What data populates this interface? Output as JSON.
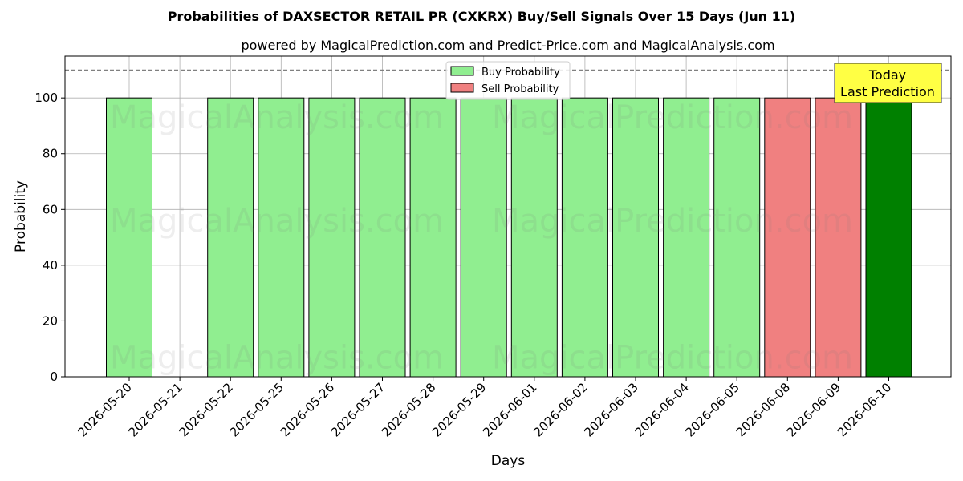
{
  "chart_data": {
    "type": "bar",
    "title": "Probabilities of DAXSECTOR RETAIL PR (CXKRX) Buy/Sell Signals Over 15 Days (Jun 11)",
    "subtitle": "powered by MagicalPrediction.com and Predict-Price.com and MagicalAnalysis.com",
    "xlabel": "Days",
    "ylabel": "Probability",
    "ylim": [
      0,
      115
    ],
    "yticks": [
      0,
      20,
      40,
      60,
      80,
      100
    ],
    "reference_line": 110,
    "grid": true,
    "legend_position": "top-center",
    "categories": [
      "2026-05-20",
      "2026-05-21",
      "2026-05-22",
      "2026-05-25",
      "2026-05-26",
      "2026-05-27",
      "2026-05-28",
      "2026-05-29",
      "2026-06-01",
      "2026-06-02",
      "2026-06-03",
      "2026-06-04",
      "2026-06-05",
      "2026-06-08",
      "2026-06-09",
      "2026-06-10"
    ],
    "series": [
      {
        "name": "Buy Probability",
        "color": "#90EE90",
        "values": [
          100,
          null,
          100,
          100,
          100,
          100,
          100,
          100,
          100,
          100,
          100,
          100,
          100,
          null,
          null,
          null
        ]
      },
      {
        "name": "Sell Probability",
        "color": "#F08080",
        "values": [
          null,
          null,
          null,
          null,
          null,
          null,
          null,
          null,
          null,
          null,
          null,
          null,
          null,
          100,
          100,
          null
        ]
      }
    ],
    "today_bar": {
      "category": "2026-06-10",
      "value": 100,
      "color": "#008000"
    },
    "annotation": {
      "line1": "Today",
      "line2": "Last Prediction",
      "color": "#FFFF44"
    },
    "watermarks": [
      "MagicalAnalysis.com",
      "MagicalPrediction.com"
    ]
  }
}
